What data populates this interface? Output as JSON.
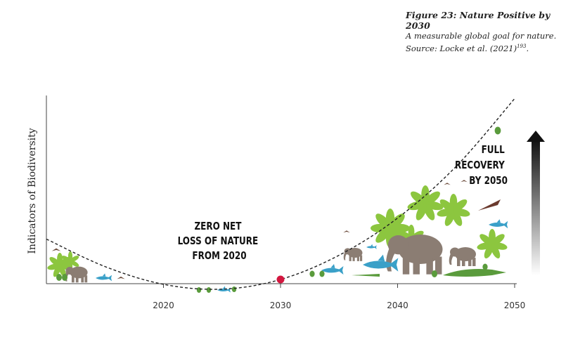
{
  "caption": {
    "title": "Figure 23: Nature Positive by 2030",
    "description": "A measurable global goal for nature. Source: Locke et al. (2021)",
    "ref": "193",
    "period": "."
  },
  "chart_data": {
    "type": "line",
    "title": "",
    "xlabel": "",
    "ylabel": "Indicators of Biodiversity",
    "xlim": [
      2010,
      2050
    ],
    "xticks": [
      "2020",
      "2030",
      "2040",
      "2050"
    ],
    "series": [
      {
        "style": "dashed",
        "x": [
          2010,
          2015,
          2020,
          2025,
          2030,
          2035,
          2040,
          2045,
          2050
        ],
        "y": [
          25,
          8,
          -3,
          -6,
          0,
          15,
          38,
          70,
          112
        ]
      }
    ],
    "markers": [
      {
        "x": 2030,
        "y": 0,
        "color": "#d3173f"
      }
    ],
    "annotations": [
      {
        "lines": [
          "ZERO NET",
          "LOSS OF NATURE",
          "FROM 2020"
        ]
      },
      {
        "lines": [
          "FULL",
          "RECOVERY",
          "BY 2050"
        ]
      }
    ],
    "colors": {
      "leaf": "#8cc63f",
      "animal": "#8b7d73",
      "fish": "#3aa0c8",
      "croc": "#5a9b3c",
      "marker": "#d3173f"
    }
  }
}
